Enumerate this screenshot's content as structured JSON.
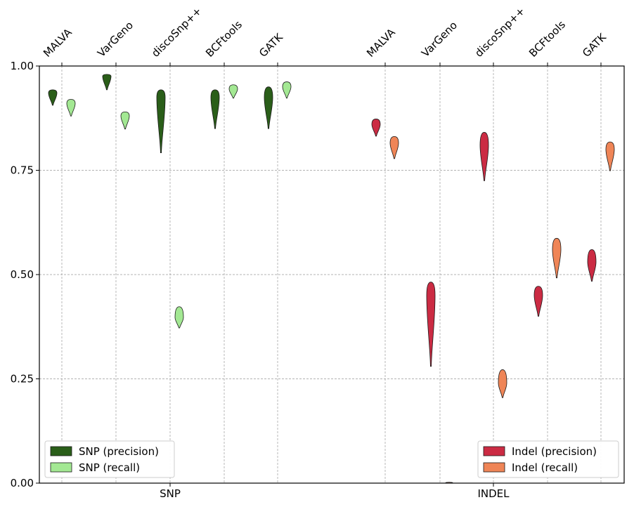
{
  "chart_data": {
    "type": "violin",
    "title": "",
    "xlabel": "",
    "ylabel": "",
    "ylim": [
      0,
      1
    ],
    "yticks": [
      {
        "value": 0.0,
        "label": "0.00"
      },
      {
        "value": 0.25,
        "label": "0.25"
      },
      {
        "value": 0.5,
        "label": "0.50"
      },
      {
        "value": 0.75,
        "label": "0.75"
      },
      {
        "value": 1.0,
        "label": "1.00"
      }
    ],
    "grid": true,
    "groups": [
      {
        "name": "SNP",
        "tools": [
          "MALVA",
          "VarGeno",
          "discoSnp++",
          "BCFtools",
          "GATK"
        ]
      },
      {
        "name": "INDEL",
        "tools": [
          "MALVA",
          "VarGeno",
          "discoSnp++",
          "BCFtools",
          "GATK"
        ]
      }
    ],
    "series": [
      {
        "name": "SNP (precision)",
        "color": "#2a5e19",
        "group": "SNP",
        "offset": -1,
        "violins": [
          {
            "tool": "MALVA",
            "min": 0.906,
            "max": 0.943,
            "widest": 0.935,
            "halfwidth": 6
          },
          {
            "tool": "VarGeno",
            "min": 0.943,
            "max": 0.98,
            "widest": 0.975,
            "halfwidth": 6
          },
          {
            "tool": "discoSnp++",
            "min": 0.792,
            "max": 0.943,
            "widest": 0.925,
            "halfwidth": 6
          },
          {
            "tool": "BCFtools",
            "min": 0.85,
            "max": 0.943,
            "widest": 0.925,
            "halfwidth": 6
          },
          {
            "tool": "GATK",
            "min": 0.85,
            "max": 0.95,
            "widest": 0.925,
            "halfwidth": 6
          }
        ]
      },
      {
        "name": "SNP (recall)",
        "color": "#a3e893",
        "group": "SNP",
        "offset": 1,
        "violins": [
          {
            "tool": "MALVA",
            "min": 0.88,
            "max": 0.92,
            "widest": 0.91,
            "halfwidth": 6
          },
          {
            "tool": "VarGeno",
            "min": 0.849,
            "max": 0.89,
            "widest": 0.88,
            "halfwidth": 6
          },
          {
            "tool": "discoSnp++",
            "min": 0.372,
            "max": 0.423,
            "widest": 0.397,
            "halfwidth": 6
          },
          {
            "tool": "BCFtools",
            "min": 0.923,
            "max": 0.955,
            "widest": 0.945,
            "halfwidth": 6
          },
          {
            "tool": "GATK",
            "min": 0.923,
            "max": 0.962,
            "widest": 0.95,
            "halfwidth": 6
          }
        ]
      },
      {
        "name": "Indel (precision)",
        "color": "#cb2b43",
        "group": "INDEL",
        "offset": -1,
        "violins": [
          {
            "tool": "MALVA",
            "min": 0.832,
            "max": 0.873,
            "widest": 0.86,
            "halfwidth": 6
          },
          {
            "tool": "VarGeno",
            "min": 0.28,
            "max": 0.482,
            "widest": 0.45,
            "halfwidth": 6
          },
          {
            "tool": "discoSnp++",
            "min": 0.725,
            "max": 0.841,
            "widest": 0.81,
            "halfwidth": 6
          },
          {
            "tool": "BCFtools",
            "min": 0.4,
            "max": 0.472,
            "widest": 0.45,
            "halfwidth": 6
          },
          {
            "tool": "GATK",
            "min": 0.484,
            "max": 0.56,
            "widest": 0.53,
            "halfwidth": 6
          }
        ]
      },
      {
        "name": "Indel (recall)",
        "color": "#ef8557",
        "group": "INDEL",
        "offset": 1,
        "violins": [
          {
            "tool": "MALVA",
            "min": 0.778,
            "max": 0.831,
            "widest": 0.815,
            "halfwidth": 6
          },
          {
            "tool": "VarGeno",
            "min": 0.0,
            "max": 0.002,
            "widest": 0.001,
            "halfwidth": 5
          },
          {
            "tool": "discoSnp++",
            "min": 0.205,
            "max": 0.272,
            "widest": 0.24,
            "halfwidth": 6
          },
          {
            "tool": "BCFtools",
            "min": 0.492,
            "max": 0.587,
            "widest": 0.56,
            "halfwidth": 6
          },
          {
            "tool": "GATK",
            "min": 0.749,
            "max": 0.818,
            "widest": 0.8,
            "halfwidth": 6
          }
        ]
      }
    ],
    "legends": [
      {
        "placement": "lower-left",
        "entries": [
          "SNP (precision)",
          "SNP (recall)"
        ]
      },
      {
        "placement": "lower-right",
        "entries": [
          "Indel (precision)",
          "Indel (recall)"
        ]
      }
    ]
  }
}
